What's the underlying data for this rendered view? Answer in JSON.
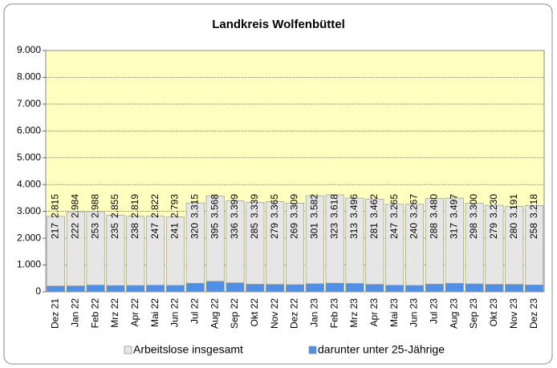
{
  "chart_data": {
    "type": "bar",
    "title": "Landkreis Wolfenbüttel",
    "categories": [
      "Dez 21",
      "Jan 22",
      "Feb 22",
      "Mrz 22",
      "Apr 22",
      "Mai 22",
      "Jun 22",
      "Jul 22",
      "Aug 22",
      "Sep 22",
      "Okt 22",
      "Nov 22",
      "Dez 22",
      "Jan 23",
      "Feb 23",
      "Mrz 23",
      "Apr 23",
      "Mai 23",
      "Jun 23",
      "Jul 23",
      "Aug 23",
      "Sep 23",
      "Okt 23",
      "Nov 23",
      "Dez 23"
    ],
    "series": [
      {
        "name": "Arbeitslose insgesamt",
        "color": "#e6e6e6",
        "values": [
          2815,
          2984,
          2988,
          2855,
          2819,
          2822,
          2793,
          3315,
          3568,
          3399,
          3339,
          3365,
          3309,
          3582,
          3618,
          3496,
          3462,
          3265,
          3267,
          3480,
          3497,
          3300,
          3230,
          3191,
          3218
        ],
        "value_labels": [
          "2.815",
          "2.984",
          "2.988",
          "2.855",
          "2.819",
          "2.822",
          "2.793",
          "3.315",
          "3.568",
          "3.399",
          "3.339",
          "3.365",
          "3.309",
          "3.582",
          "3.618",
          "3.496",
          "3.462",
          "3.265",
          "3.267",
          "3.480",
          "3.497",
          "3.300",
          "3.230",
          "3.191",
          "3.218"
        ]
      },
      {
        "name": "darunter unter 25-Jährige",
        "color": "#4f8fe6",
        "values": [
          217,
          222,
          253,
          235,
          238,
          247,
          241,
          320,
          395,
          336,
          285,
          279,
          269,
          301,
          323,
          313,
          281,
          247,
          240,
          288,
          317,
          298,
          279,
          280,
          258
        ]
      }
    ],
    "ylim": [
      0,
      9000
    ],
    "yticks": [
      0,
      {
        "value": 1000,
        "label": "1.000"
      },
      {
        "value": 2000,
        "label": "2.000"
      },
      {
        "value": 3000,
        "label": "3.000"
      },
      {
        "value": 4000,
        "label": "4.000"
      },
      {
        "value": 5000,
        "label": "5.000"
      },
      {
        "value": 6000,
        "label": "6.000"
      },
      {
        "value": 7000,
        "label": "7.000"
      },
      {
        "value": 8000,
        "label": "8.000"
      },
      {
        "value": 9000,
        "label": "9.000"
      }
    ],
    "grid": true
  }
}
